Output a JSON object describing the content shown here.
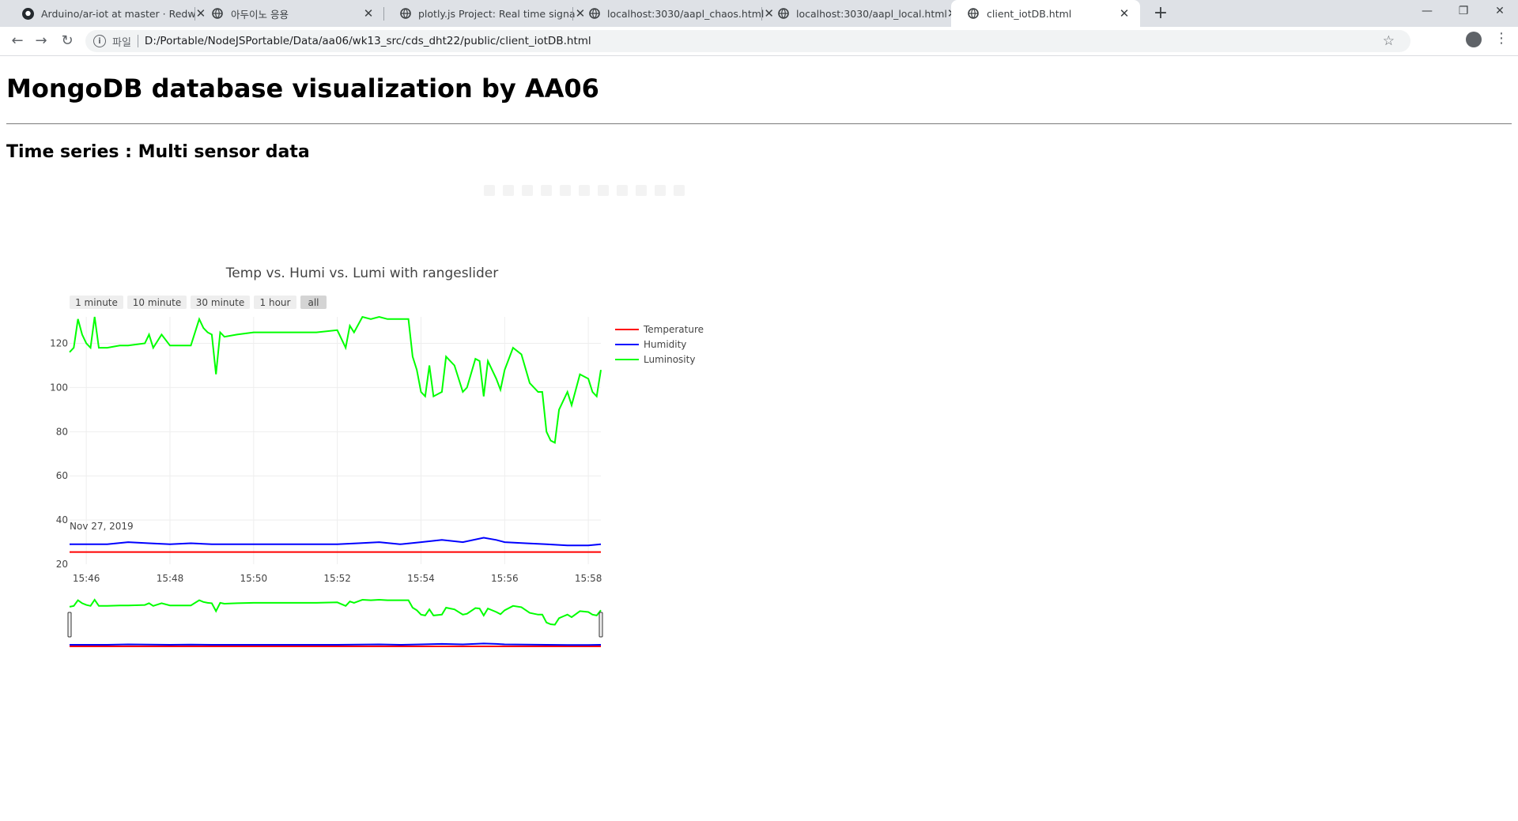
{
  "browser": {
    "tabs": [
      {
        "title": "Arduino/ar-iot at master · Redw",
        "icon": "github-icon",
        "active": false
      },
      {
        "title": "아두이노 응용",
        "icon": "globe-icon",
        "active": false
      },
      {
        "title": "plotly.js Project: Real time signa",
        "icon": "globe-icon",
        "active": false
      },
      {
        "title": "localhost:3030/aapl_chaos.html",
        "icon": "globe-icon",
        "active": false
      },
      {
        "title": "localhost:3030/aapl_local.html",
        "icon": "globe-icon",
        "active": false
      },
      {
        "title": "client_iotDB.html",
        "icon": "globe-icon",
        "active": true
      }
    ],
    "scheme_label": "파일",
    "url": "D:/Portable/NodeJSPortable/Data/aa06/wk13_src/cds_dht22/public/client_iotDB.html"
  },
  "page": {
    "heading": "MongoDB database visualization by AA06",
    "subheading": "Time series : Multi sensor data"
  },
  "chart_data": {
    "type": "line",
    "title": "Temp vs. Humi vs. Lumi with rangeslider",
    "range_buttons": [
      "1 minute",
      "10 minute",
      "30 minute",
      "1 hour",
      "all"
    ],
    "active_range_button": "all",
    "x_ticks": [
      "15:46",
      "15:48",
      "15:50",
      "15:52",
      "15:54",
      "15:56",
      "15:58"
    ],
    "x_date_label": "Nov 27, 2019",
    "x_range_minutes": [
      "15:45.6",
      "15:58.3"
    ],
    "y_ticks": [
      20,
      40,
      60,
      80,
      100,
      120
    ],
    "ylim": [
      20,
      132
    ],
    "grid": true,
    "legend_position": "top-right",
    "rangeslider": true,
    "colors": {
      "Temperature": "#ff0000",
      "Humidity": "#0000ff",
      "Luminosity": "#00ff00"
    },
    "series": [
      {
        "name": "Temperature",
        "x": [
          "15:45.6",
          "15:58.3"
        ],
        "y": [
          25.5,
          25.5
        ]
      },
      {
        "name": "Humidity",
        "x": [
          "15:45.6",
          "15:46.5",
          "15:47.0",
          "15:47.5",
          "15:48.0",
          "15:48.5",
          "15:49.0",
          "15:50.0",
          "15:51.0",
          "15:52.0",
          "15:52.5",
          "15:53.0",
          "15:53.5",
          "15:54.0",
          "15:54.5",
          "15:55.0",
          "15:55.5",
          "15:55.8",
          "15:56.0",
          "15:56.5",
          "15:57.0",
          "15:57.5",
          "15:58.0",
          "15:58.3"
        ],
        "y": [
          29,
          29,
          30,
          29.5,
          29,
          29.5,
          29,
          29,
          29,
          29,
          29.5,
          30,
          29,
          30,
          31,
          30,
          32,
          31,
          30,
          29.5,
          29,
          28.5,
          28.5,
          29
        ]
      },
      {
        "name": "Luminosity",
        "x": [
          "15:45.6",
          "15:45.7",
          "15:45.8",
          "15:45.9",
          "15:46.0",
          "15:46.1",
          "15:46.2",
          "15:46.3",
          "15:46.5",
          "15:46.8",
          "15:47.0",
          "15:47.4",
          "15:47.5",
          "15:47.6",
          "15:47.8",
          "15:48.0",
          "15:48.3",
          "15:48.5",
          "15:48.7",
          "15:48.8",
          "15:48.9",
          "15:49.0",
          "15:49.1",
          "15:49.2",
          "15:49.3",
          "15:49.6",
          "15:50.0",
          "15:50.5",
          "15:51.0",
          "15:51.5",
          "15:52.0",
          "15:52.2",
          "15:52.3",
          "15:52.4",
          "15:52.6",
          "15:52.8",
          "15:53.0",
          "15:53.2",
          "15:53.5",
          "15:53.7",
          "15:53.8",
          "15:53.9",
          "15:54.0",
          "15:54.1",
          "15:54.2",
          "15:54.3",
          "15:54.5",
          "15:54.6",
          "15:54.7",
          "15:54.8",
          "15:55.0",
          "15:55.1",
          "15:55.3",
          "15:55.4",
          "15:55.5",
          "15:55.6",
          "15:55.8",
          "15:55.9",
          "15:56.0",
          "15:56.2",
          "15:56.4",
          "15:56.6",
          "15:56.8",
          "15:56.9",
          "15:57.0",
          "15:57.1",
          "15:57.2",
          "15:57.3",
          "15:57.4",
          "15:57.5",
          "15:57.6",
          "15:57.8",
          "15:58.0",
          "15:58.1",
          "15:58.2",
          "15:58.3"
        ],
        "y": [
          116,
          118,
          131,
          124,
          120,
          118,
          132,
          118,
          118,
          119,
          119,
          120,
          124,
          118,
          124,
          119,
          119,
          119,
          131,
          127,
          125,
          124,
          106,
          125,
          123,
          124,
          125,
          125,
          125,
          125,
          126,
          118,
          128,
          125,
          132,
          131,
          132,
          131,
          131,
          131,
          114,
          108,
          98,
          96,
          110,
          96,
          98,
          114,
          112,
          110,
          98,
          100,
          113,
          112,
          96,
          112,
          104,
          99,
          108,
          118,
          115,
          102,
          98,
          98,
          80,
          76,
          75,
          90,
          94,
          98,
          92,
          106,
          104,
          98,
          96,
          108
        ]
      }
    ]
  }
}
